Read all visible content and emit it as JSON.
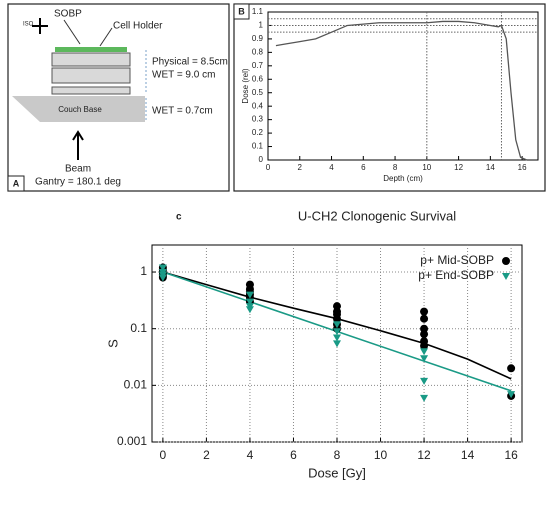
{
  "diagram_a": {
    "label": "A",
    "iso": "ISO",
    "sobp": "SOBP",
    "cell_holder": "Cell Holder",
    "physical": "Physical = 8.5cm",
    "wet_phantom": "WET = 9.0 cm",
    "wet_couch": "WET = 0.7cm",
    "couch_base": "Couch Base",
    "beam": "Beam",
    "gantry": "Gantry = 180.1 deg"
  },
  "chart_data": [
    {
      "type": "line",
      "panel_label": "B",
      "xlabel": "Depth (cm)",
      "ylabel": "Dose (rel)",
      "color": "#555555",
      "x": [
        0.5,
        1,
        2,
        3,
        4,
        5,
        6,
        7,
        8,
        9,
        10,
        11,
        12,
        13,
        14,
        14.5,
        14.7,
        15,
        15.3,
        15.6,
        15.9,
        16.3
      ],
      "values": [
        0.85,
        0.86,
        0.88,
        0.9,
        0.95,
        1.0,
        1.01,
        1.02,
        1.02,
        1.02,
        1.02,
        1.03,
        1.03,
        1.02,
        1.0,
        0.99,
        1.0,
        0.9,
        0.5,
        0.15,
        0.02,
        0
      ],
      "xlim": [
        0,
        17
      ],
      "xticks": [
        0,
        2,
        4,
        6,
        8,
        10,
        12,
        14,
        16
      ],
      "ylim": [
        0,
        1.1
      ],
      "yticks": [
        0,
        0.1,
        0.2,
        0.3,
        0.4,
        0.5,
        0.6,
        0.7,
        0.8,
        0.9,
        1,
        1.1
      ],
      "hlines": [
        0.95,
        1.0,
        1.05
      ],
      "vlines": [
        10,
        14.7
      ]
    },
    {
      "type": "scatter",
      "panel_label": "c",
      "title": "U-CH2 Clonogenic Survival",
      "xlabel": "Dose [Gy]",
      "ylabel": "S",
      "log_y": true,
      "grid": true,
      "legend": "upper right",
      "xlim": [
        -0.5,
        16.5
      ],
      "xticks": [
        0,
        2,
        4,
        6,
        8,
        10,
        12,
        14,
        16
      ],
      "ylim": [
        0.001,
        3
      ],
      "yticks": [
        0.001,
        0.01,
        0.1,
        1
      ],
      "series": [
        {
          "name": "p+ Mid-SOBP",
          "color": "#000000",
          "marker": "circle",
          "x": [
            0,
            0,
            0,
            0,
            0,
            0,
            4,
            4,
            4,
            4,
            4,
            4,
            8,
            8,
            8,
            8,
            8,
            8,
            12,
            12,
            12,
            12,
            12,
            12,
            16,
            16
          ],
          "values": [
            1.2,
            1.1,
            1.0,
            0.9,
            0.85,
            0.8,
            0.6,
            0.5,
            0.45,
            0.4,
            0.35,
            0.3,
            0.25,
            0.2,
            0.18,
            0.15,
            0.12,
            0.1,
            0.2,
            0.15,
            0.1,
            0.08,
            0.06,
            0.05,
            0.02,
            0.0065
          ],
          "fit_x": [
            0,
            2,
            4,
            6,
            8,
            10,
            12,
            14,
            16
          ],
          "fit_values": [
            1,
            0.6,
            0.36,
            0.23,
            0.15,
            0.092,
            0.055,
            0.029,
            0.013
          ]
        },
        {
          "name": "p+ End-SOBP",
          "color": "#1a9a86",
          "marker": "triangle",
          "x": [
            0,
            0,
            0,
            0,
            4,
            4,
            4,
            4,
            8,
            8,
            8,
            8,
            12,
            12,
            12,
            12,
            16
          ],
          "values": [
            1.2,
            1.0,
            0.9,
            0.8,
            0.4,
            0.3,
            0.25,
            0.22,
            0.12,
            0.09,
            0.07,
            0.055,
            0.04,
            0.03,
            0.012,
            0.006,
            0.007
          ],
          "fit_x": [
            0,
            16
          ],
          "fit_values": [
            1,
            0.008
          ]
        }
      ]
    }
  ]
}
